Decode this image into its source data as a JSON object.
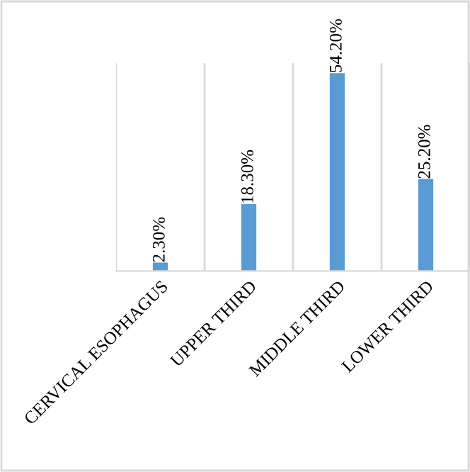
{
  "chart_data": {
    "type": "bar",
    "categories": [
      "CERVICAL ESOPHAGUS",
      "UPPER THIRD",
      "MIDDLE THIRD",
      "LOWER THIRD"
    ],
    "values": [
      2.3,
      18.3,
      54.2,
      25.2
    ],
    "value_labels": [
      "2.30%",
      "18.30%",
      "54.20%",
      "25.20%"
    ],
    "color": "#5b9bd5",
    "grid": "x"
  }
}
